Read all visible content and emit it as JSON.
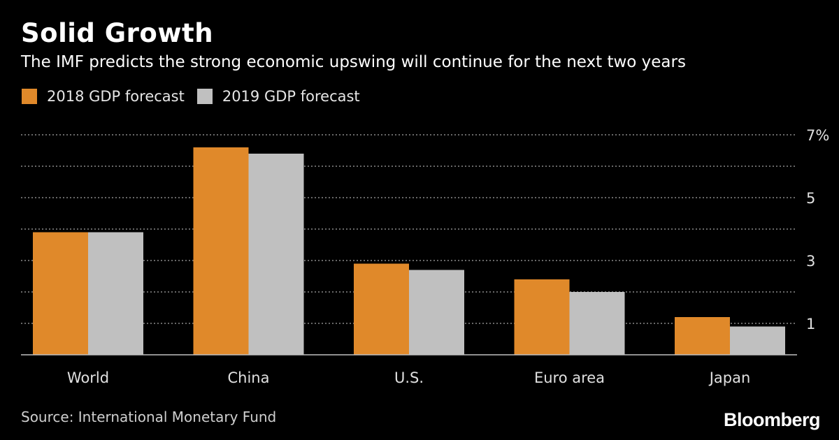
{
  "header": {
    "title": "Solid Growth",
    "subtitle": "The IMF predicts the strong economic upswing will continue for the next two years"
  },
  "legend": {
    "items": [
      {
        "label": "2018 GDP forecast",
        "color": "#e0892a"
      },
      {
        "label": "2019 GDP forecast",
        "color": "#c0c0c0"
      }
    ]
  },
  "footer": {
    "source": "Source: International Monetary Fund",
    "brand": "Bloomberg"
  },
  "chart_data": {
    "type": "bar",
    "title": "Solid Growth",
    "categories": [
      "World",
      "China",
      "U.S.",
      "Euro area",
      "Japan"
    ],
    "series": [
      {
        "name": "2018 GDP forecast",
        "values": [
          3.9,
          6.6,
          2.9,
          2.4,
          1.2
        ],
        "color": "#e0892a"
      },
      {
        "name": "2019 GDP forecast",
        "values": [
          3.9,
          6.4,
          2.7,
          2.0,
          0.9
        ],
        "color": "#c0c0c0"
      }
    ],
    "ylim": [
      0,
      7
    ],
    "yticks": [
      0,
      1,
      2,
      3,
      4,
      5,
      6,
      7
    ],
    "ytick_labels": [
      "",
      "1",
      "",
      "3",
      "",
      "5",
      "",
      "7%"
    ],
    "xlabel": "",
    "ylabel": "",
    "grid": true,
    "gridline_color": "#8a8a8a",
    "axis_color": "#bfbfbf"
  }
}
